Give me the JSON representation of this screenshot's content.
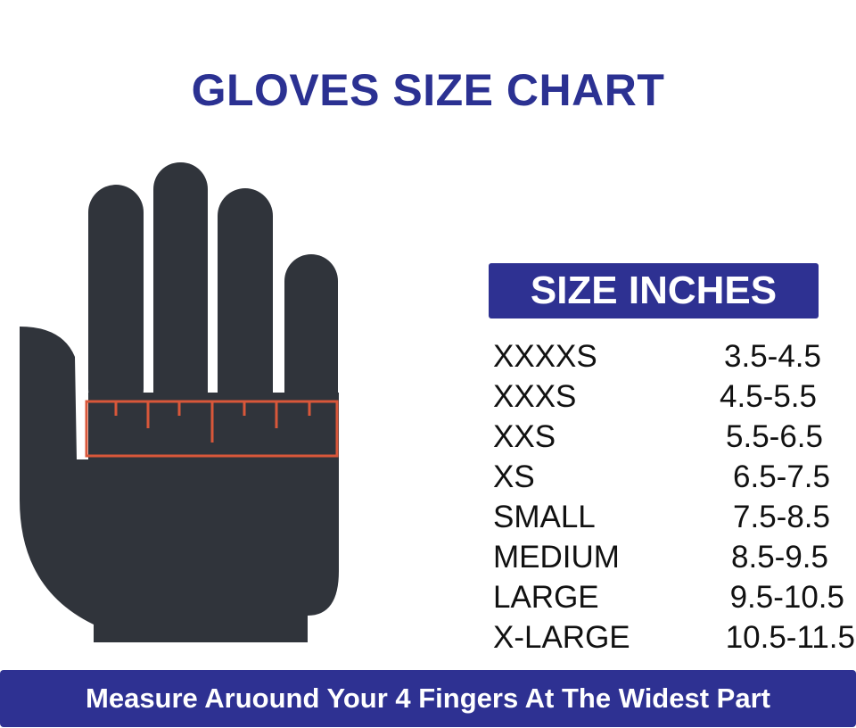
{
  "title": "GLOVES SIZE CHART",
  "table": {
    "header": "SIZE INCHES",
    "rows": [
      {
        "size": "XXXXS",
        "inches": "3.5-4.5"
      },
      {
        "size": "XXXS",
        "inches": "4.5-5.5"
      },
      {
        "size": "XXS",
        "inches": "5.5-6.5"
      },
      {
        "size": "XS",
        "inches": "6.5-7.5"
      },
      {
        "size": "SMALL",
        "inches": "7.5-8.5"
      },
      {
        "size": "MEDIUM",
        "inches": "8.5-9.5"
      },
      {
        "size": "LARGE",
        "inches": "9.5-10.5"
      },
      {
        "size": "X-LARGE",
        "inches": "10.5-11.5"
      }
    ]
  },
  "footer": "Measure Aruound Your 4 Fingers At The Widest Part",
  "colors": {
    "brand_blue": "#2e3192",
    "hand": "#30343b",
    "ruler": "#d9573a"
  },
  "icons": {
    "hand": "hand-with-ruler-icon"
  }
}
